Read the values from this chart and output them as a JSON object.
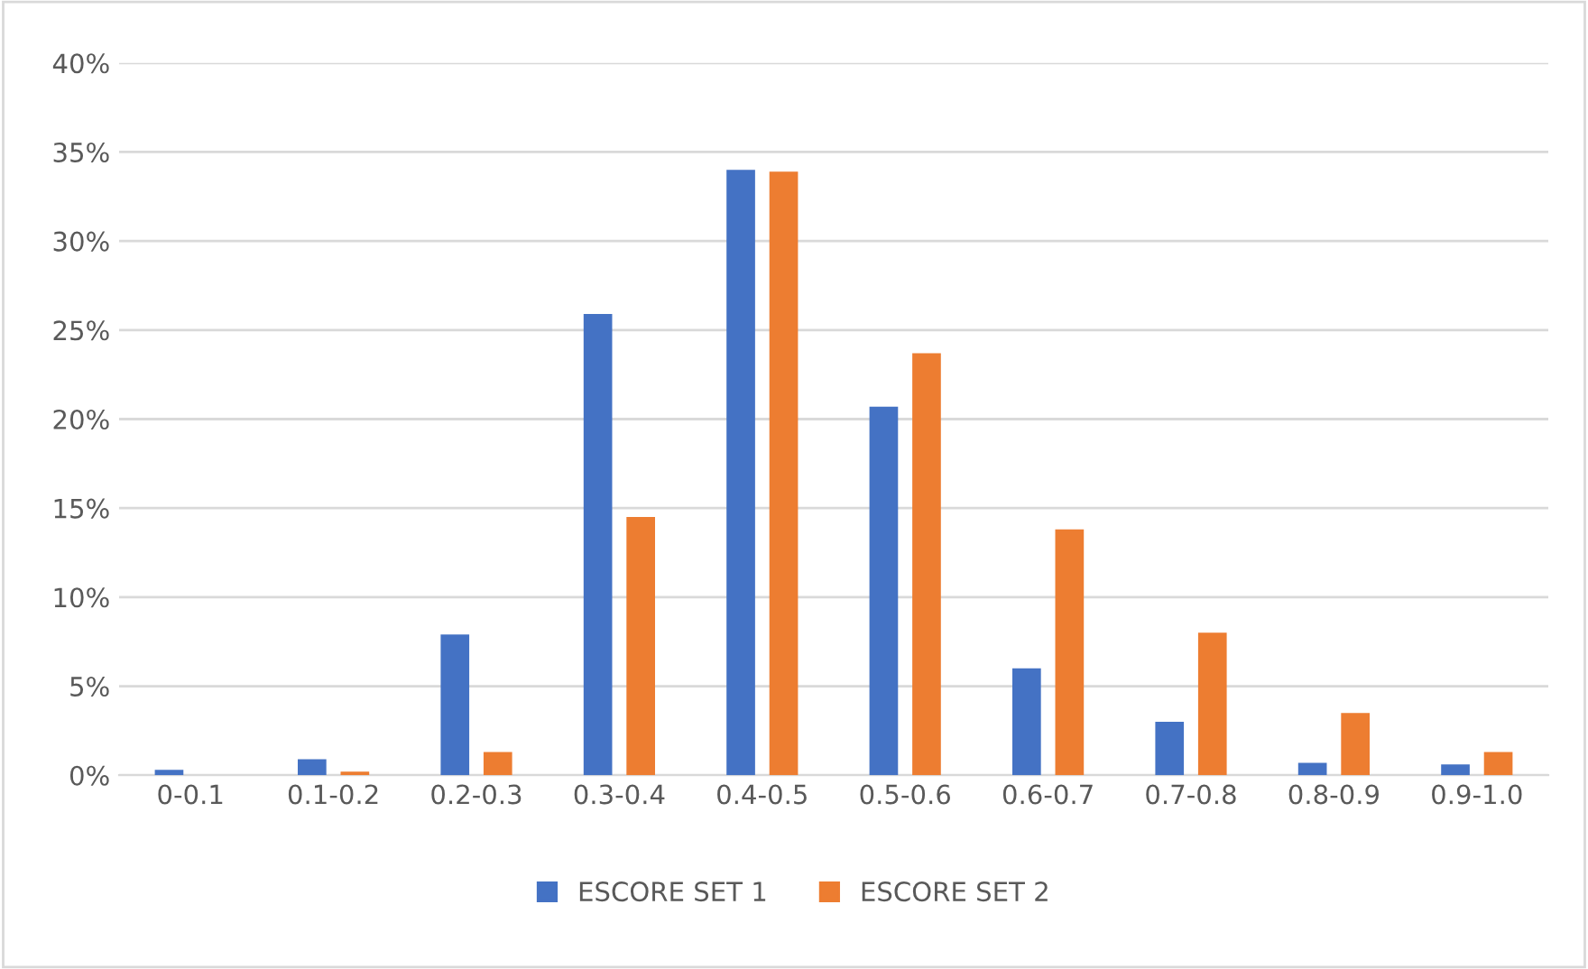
{
  "chart_data": {
    "type": "bar",
    "categories": [
      "0-0.1",
      "0.1-0.2",
      "0.2-0.3",
      "0.3-0.4",
      "0.4-0.5",
      "0.5-0.6",
      "0.6-0.7",
      "0.7-0.8",
      "0.8-0.9",
      "0.9-1.0"
    ],
    "series": [
      {
        "name": "ESCORE SET 1",
        "color": "#4472c4",
        "values": [
          0.3,
          0.9,
          7.9,
          25.9,
          34.0,
          20.7,
          6.0,
          3.0,
          0.7,
          0.6
        ]
      },
      {
        "name": "ESCORE SET 2",
        "color": "#ed7d31",
        "values": [
          0,
          0.2,
          1.3,
          14.5,
          33.9,
          23.7,
          13.8,
          8.0,
          3.5,
          1.3
        ]
      }
    ],
    "ylim": [
      0,
      40
    ],
    "yticks": [
      {
        "value": 0,
        "label": "0%"
      },
      {
        "value": 5,
        "label": "5%"
      },
      {
        "value": 10,
        "label": "10%"
      },
      {
        "value": 15,
        "label": "15%"
      },
      {
        "value": 20,
        "label": "20%"
      },
      {
        "value": 25,
        "label": "25%"
      },
      {
        "value": 30,
        "label": "30%"
      },
      {
        "value": 35,
        "label": "35%"
      },
      {
        "value": 40,
        "label": "40%"
      }
    ],
    "grid": "y",
    "legend": "bottom"
  }
}
